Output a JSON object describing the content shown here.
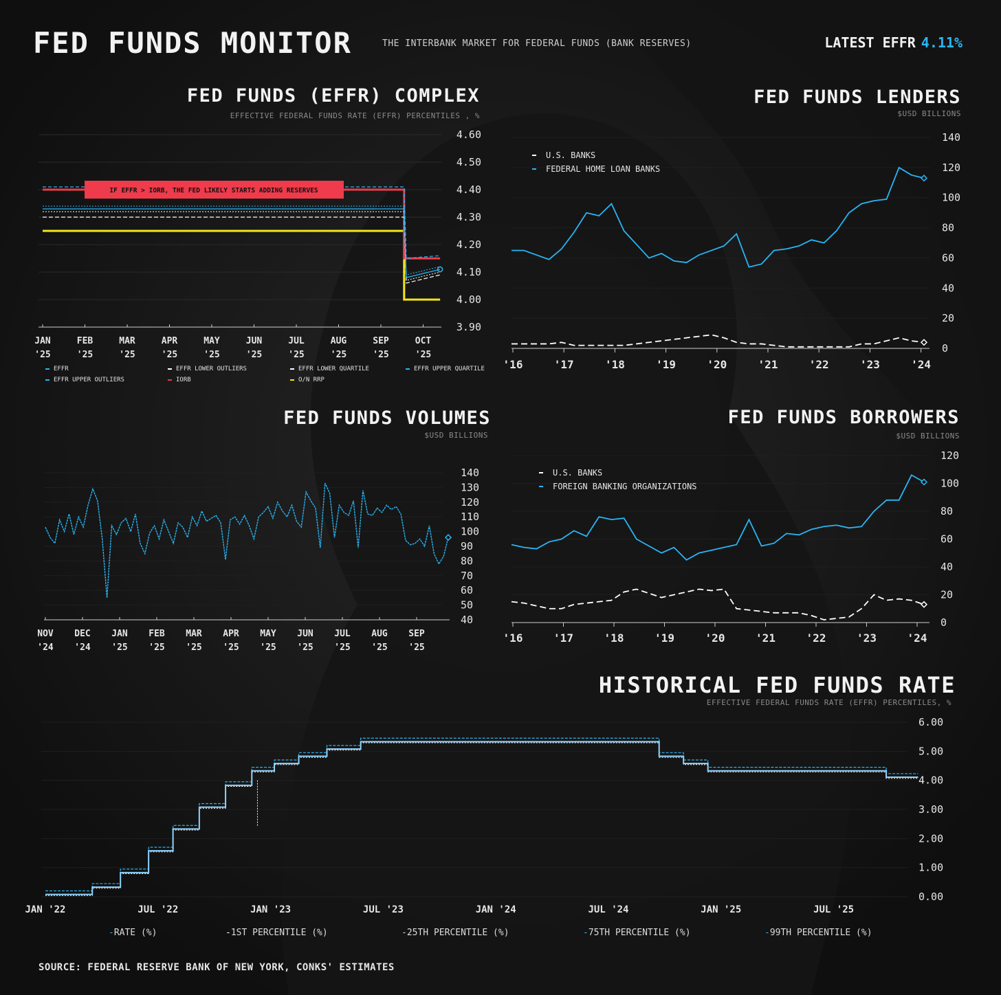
{
  "header": {
    "title": "FED FUNDS MONITOR",
    "subtitle": "THE INTERBANK MARKET FOR FEDERAL FUNDS (BANK RESERVES)",
    "latest_label": "LATEST EFFR",
    "latest_value": "4.11%"
  },
  "colors": {
    "blue": "#29b6f6",
    "red": "#ef3b4b",
    "yellow": "#f5e61b",
    "white": "#ffffff",
    "grid": "#2a2a2a"
  },
  "footer": {
    "source": "SOURCE: FEDERAL RESERVE BANK OF NEW YORK, CONKS' ESTIMATES"
  },
  "chart_data": [
    {
      "id": "complex",
      "type": "line",
      "title": "FED FUNDS (EFFR) COMPLEX",
      "subtitle": "EFFECTIVE FEDERAL FUNDS RATE (EFFR) PERCENTILES , %",
      "x_ticks": [
        "JAN\n'25",
        "FEB\n'25",
        "MAR\n'25",
        "APR\n'25",
        "MAY\n'25",
        "JUN\n'25",
        "JUL\n'25",
        "AUG\n'25",
        "SEP\n'25",
        "OCT\n'25"
      ],
      "y_ticks": [
        "4.60",
        "4.50",
        "4.40",
        "4.30",
        "4.20",
        "4.10",
        "4.00",
        "3.90"
      ],
      "ylim": [
        3.9,
        4.6
      ],
      "annotation": "IF EFFR > IORB, THE FED LIKELY STARTS ADDING RESERVES",
      "legend": [
        {
          "label": "EFFR",
          "color": "#29b6f6"
        },
        {
          "label": "EFFR LOWER OUTLIERS",
          "color": "#ffffff"
        },
        {
          "label": "EFFR LOWER QUARTILE",
          "color": "#ffffff"
        },
        {
          "label": "EFFR UPPER QUARTILE",
          "color": "#29b6f6"
        },
        {
          "label": "EFFR UPPER OUTLIERS",
          "color": "#29b6f6"
        },
        {
          "label": "IORB",
          "color": "#ef3b4b"
        },
        {
          "label": "O/N RRP",
          "color": "#f5e61b"
        }
      ],
      "series": [
        {
          "name": "EFFR",
          "x_months": [
            0,
            8.55,
            8.6,
            9.4
          ],
          "values": [
            4.33,
            4.33,
            4.08,
            4.11
          ]
        },
        {
          "name": "EFFR LOWER OUTLIERS",
          "x_months": [
            0,
            8.55,
            8.6,
            9.4
          ],
          "values": [
            4.3,
            4.3,
            4.06,
            4.09
          ]
        },
        {
          "name": "EFFR LOWER QUARTILE",
          "x_months": [
            0,
            8.55,
            8.6,
            9.4
          ],
          "values": [
            4.32,
            4.32,
            4.07,
            4.1
          ]
        },
        {
          "name": "EFFR UPPER QUARTILE",
          "x_months": [
            0,
            8.55,
            8.6,
            9.4
          ],
          "values": [
            4.34,
            4.34,
            4.09,
            4.12
          ]
        },
        {
          "name": "EFFR UPPER OUTLIERS",
          "x_months": [
            0,
            8.55,
            8.6,
            9.4
          ],
          "values": [
            4.41,
            4.41,
            4.15,
            4.16
          ]
        },
        {
          "name": "IORB",
          "x_months": [
            0,
            8.55,
            8.55,
            9.4
          ],
          "values": [
            4.4,
            4.4,
            4.15,
            4.15
          ]
        },
        {
          "name": "O/N RRP",
          "x_months": [
            0,
            8.55,
            8.55,
            9.4
          ],
          "values": [
            4.25,
            4.25,
            4.0,
            4.0
          ]
        }
      ]
    },
    {
      "id": "lenders",
      "type": "line",
      "title": "FED FUNDS LENDERS",
      "subtitle": "$USD BILLIONS",
      "x_ticks": [
        "'16",
        "'17",
        "'18",
        "'19",
        "'20",
        "'21",
        "'22",
        "'23",
        "'24"
      ],
      "y_ticks": [
        "140",
        "120",
        "100",
        "80",
        "60",
        "40",
        "20",
        "0"
      ],
      "ylim": [
        0,
        140
      ],
      "legend": [
        {
          "label": "U.S. BANKS",
          "color": "#ffffff"
        },
        {
          "label": "FEDERAL HOME LOAN BANKS",
          "color": "#29b6f6"
        }
      ],
      "series": [
        {
          "name": "FEDERAL HOME LOAN BANKS",
          "values": [
            65,
            65,
            62,
            59,
            66,
            77,
            90,
            88,
            96,
            78,
            69,
            60,
            63,
            58,
            57,
            62,
            65,
            68,
            76,
            54,
            56,
            65,
            66,
            68,
            72,
            70,
            78,
            90,
            96,
            98,
            99,
            120,
            115,
            113
          ]
        },
        {
          "name": "U.S. BANKS",
          "values": [
            3,
            3,
            3,
            3,
            4,
            2,
            2,
            2,
            2,
            2,
            3,
            4,
            5,
            6,
            7,
            8,
            9,
            7,
            4,
            3,
            3,
            2,
            1,
            1,
            1,
            1,
            1,
            1,
            3,
            3,
            5,
            7,
            5,
            4
          ]
        }
      ]
    },
    {
      "id": "volumes",
      "type": "line",
      "title": "FED FUNDS VOLUMES",
      "subtitle": "$USD BILLIONS",
      "x_ticks": [
        "NOV\n'24",
        "DEC\n'24",
        "JAN\n'25",
        "FEB\n'25",
        "MAR\n'25",
        "APR\n'25",
        "MAY\n'25",
        "JUN\n'25",
        "JUL\n'25",
        "AUG\n'25",
        "SEP\n'25"
      ],
      "y_ticks": [
        "140",
        "130",
        "120",
        "110",
        "100",
        "90",
        "80",
        "70",
        "60",
        "50",
        "40"
      ],
      "ylim": [
        40,
        140
      ],
      "series": [
        {
          "name": "VOLUME",
          "values": [
            103,
            96,
            92,
            108,
            100,
            112,
            98,
            110,
            103,
            118,
            129,
            121,
            95,
            55,
            104,
            98,
            106,
            109,
            100,
            112,
            92,
            85,
            99,
            104,
            95,
            108,
            100,
            92,
            106,
            103,
            96,
            110,
            104,
            114,
            107,
            109,
            111,
            106,
            81,
            108,
            110,
            105,
            111,
            104,
            95,
            110,
            113,
            117,
            109,
            120,
            114,
            110,
            118,
            107,
            103,
            127,
            121,
            116,
            89,
            133,
            126,
            96,
            118,
            113,
            111,
            121,
            89,
            128,
            112,
            111,
            116,
            113,
            118,
            115,
            117,
            112,
            94,
            91,
            92,
            95,
            90,
            104,
            85,
            78,
            83,
            96
          ]
        }
      ]
    },
    {
      "id": "borrowers",
      "type": "line",
      "title": "FED FUNDS BORROWERS",
      "subtitle": "$USD BILLIONS",
      "x_ticks": [
        "'16",
        "'17",
        "'18",
        "'19",
        "'20",
        "'21",
        "'22",
        "'23",
        "'24"
      ],
      "y_ticks": [
        "120",
        "100",
        "80",
        "60",
        "40",
        "20",
        "0"
      ],
      "ylim": [
        0,
        120
      ],
      "legend": [
        {
          "label": "U.S. BANKS",
          "color": "#ffffff"
        },
        {
          "label": "FOREIGN BANKING ORGANIZATIONS",
          "color": "#29b6f6"
        }
      ],
      "series": [
        {
          "name": "FOREIGN BANKING ORGANIZATIONS",
          "values": [
            56,
            54,
            53,
            58,
            60,
            66,
            62,
            76,
            74,
            75,
            60,
            55,
            50,
            54,
            45,
            50,
            52,
            54,
            56,
            74,
            55,
            57,
            64,
            63,
            67,
            69,
            70,
            68,
            69,
            80,
            88,
            88,
            106,
            101
          ]
        },
        {
          "name": "U.S. BANKS",
          "values": [
            15,
            14,
            12,
            10,
            10,
            13,
            14,
            15,
            16,
            22,
            24,
            21,
            18,
            20,
            22,
            24,
            23,
            24,
            10,
            9,
            8,
            7,
            7,
            7,
            5,
            2,
            3,
            4,
            10,
            20,
            16,
            17,
            16,
            13
          ]
        }
      ]
    },
    {
      "id": "historical",
      "type": "line",
      "title": "HISTORICAL FED FUNDS RATE",
      "subtitle": "EFFECTIVE FEDERAL FUNDS RATE (EFFR) PERCENTILES, %",
      "x_ticks": [
        "JAN '22",
        "JUL '22",
        "JAN '23",
        "JUL '23",
        "JAN '24",
        "JUL '24",
        "JAN '25",
        "JUL '25"
      ],
      "y_ticks": [
        "6.00",
        "5.00",
        "4.00",
        "3.00",
        "2.00",
        "1.00",
        "0.00"
      ],
      "ylim": [
        0,
        6
      ],
      "legend": [
        "RATE (%)",
        "1ST PERCENTILE (%)",
        "25TH PERCENTILE (%)",
        "75TH PERCENTILE (%)",
        "99TH PERCENTILE (%)"
      ],
      "series": [
        {
          "name": "RATE (%)",
          "x_months": [
            0,
            2.5,
            2.5,
            4,
            4,
            5.5,
            5.5,
            6.8,
            6.8,
            8.2,
            8.2,
            9.6,
            9.6,
            11,
            11,
            12.2,
            12.2,
            13.5,
            13.5,
            15,
            15,
            16.8,
            16.8,
            32.7,
            32.7,
            34,
            34,
            35.3,
            35.3,
            44.8,
            44.8,
            46.5
          ],
          "values": [
            0.08,
            0.08,
            0.33,
            0.33,
            0.83,
            0.83,
            1.58,
            1.58,
            2.33,
            2.33,
            3.08,
            3.08,
            3.83,
            3.83,
            4.33,
            4.33,
            4.58,
            4.58,
            4.83,
            4.83,
            5.08,
            5.08,
            5.33,
            5.33,
            4.83,
            4.83,
            4.58,
            4.58,
            4.33,
            4.33,
            4.11,
            4.11
          ]
        }
      ]
    }
  ]
}
